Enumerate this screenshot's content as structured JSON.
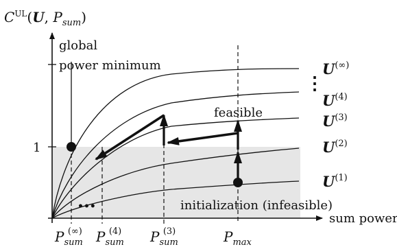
{
  "figure": {
    "y_axis_label": {
      "main": "C",
      "sup": "UL",
      "args_open": "(",
      "arg_u": "U",
      "comma": ", ",
      "arg_p": "P",
      "arg_p_sub": "sum",
      "args_close": ")"
    },
    "x_axis_label": "sum power",
    "y_tick_label": "1",
    "annotations": {
      "global_line1": "global",
      "global_line2": "power minimum",
      "feasible": "feasible",
      "initialization": "initialization (infeasible)",
      "ellipsis_vertical": "⋮",
      "ellipsis_horizontal": "•••"
    },
    "curve_labels": [
      {
        "base": "U",
        "sup": "(∞)"
      },
      {
        "base": "U",
        "sup": "(4)"
      },
      {
        "base": "U",
        "sup": "(3)"
      },
      {
        "base": "U",
        "sup": "(2)"
      },
      {
        "base": "U",
        "sup": "(1)"
      }
    ],
    "x_tick_labels": [
      {
        "base": "P",
        "sub": "sum",
        "sup": "(∞)"
      },
      {
        "base": "P",
        "sub": "sum",
        "sup": "(4)"
      },
      {
        "base": "P",
        "sub": "sum",
        "sup": "(3)"
      },
      {
        "base": "P",
        "sub": "max",
        "sup": ""
      }
    ],
    "colors": {
      "ink": "#111111",
      "feasible_region": "#e6e6e6"
    }
  }
}
